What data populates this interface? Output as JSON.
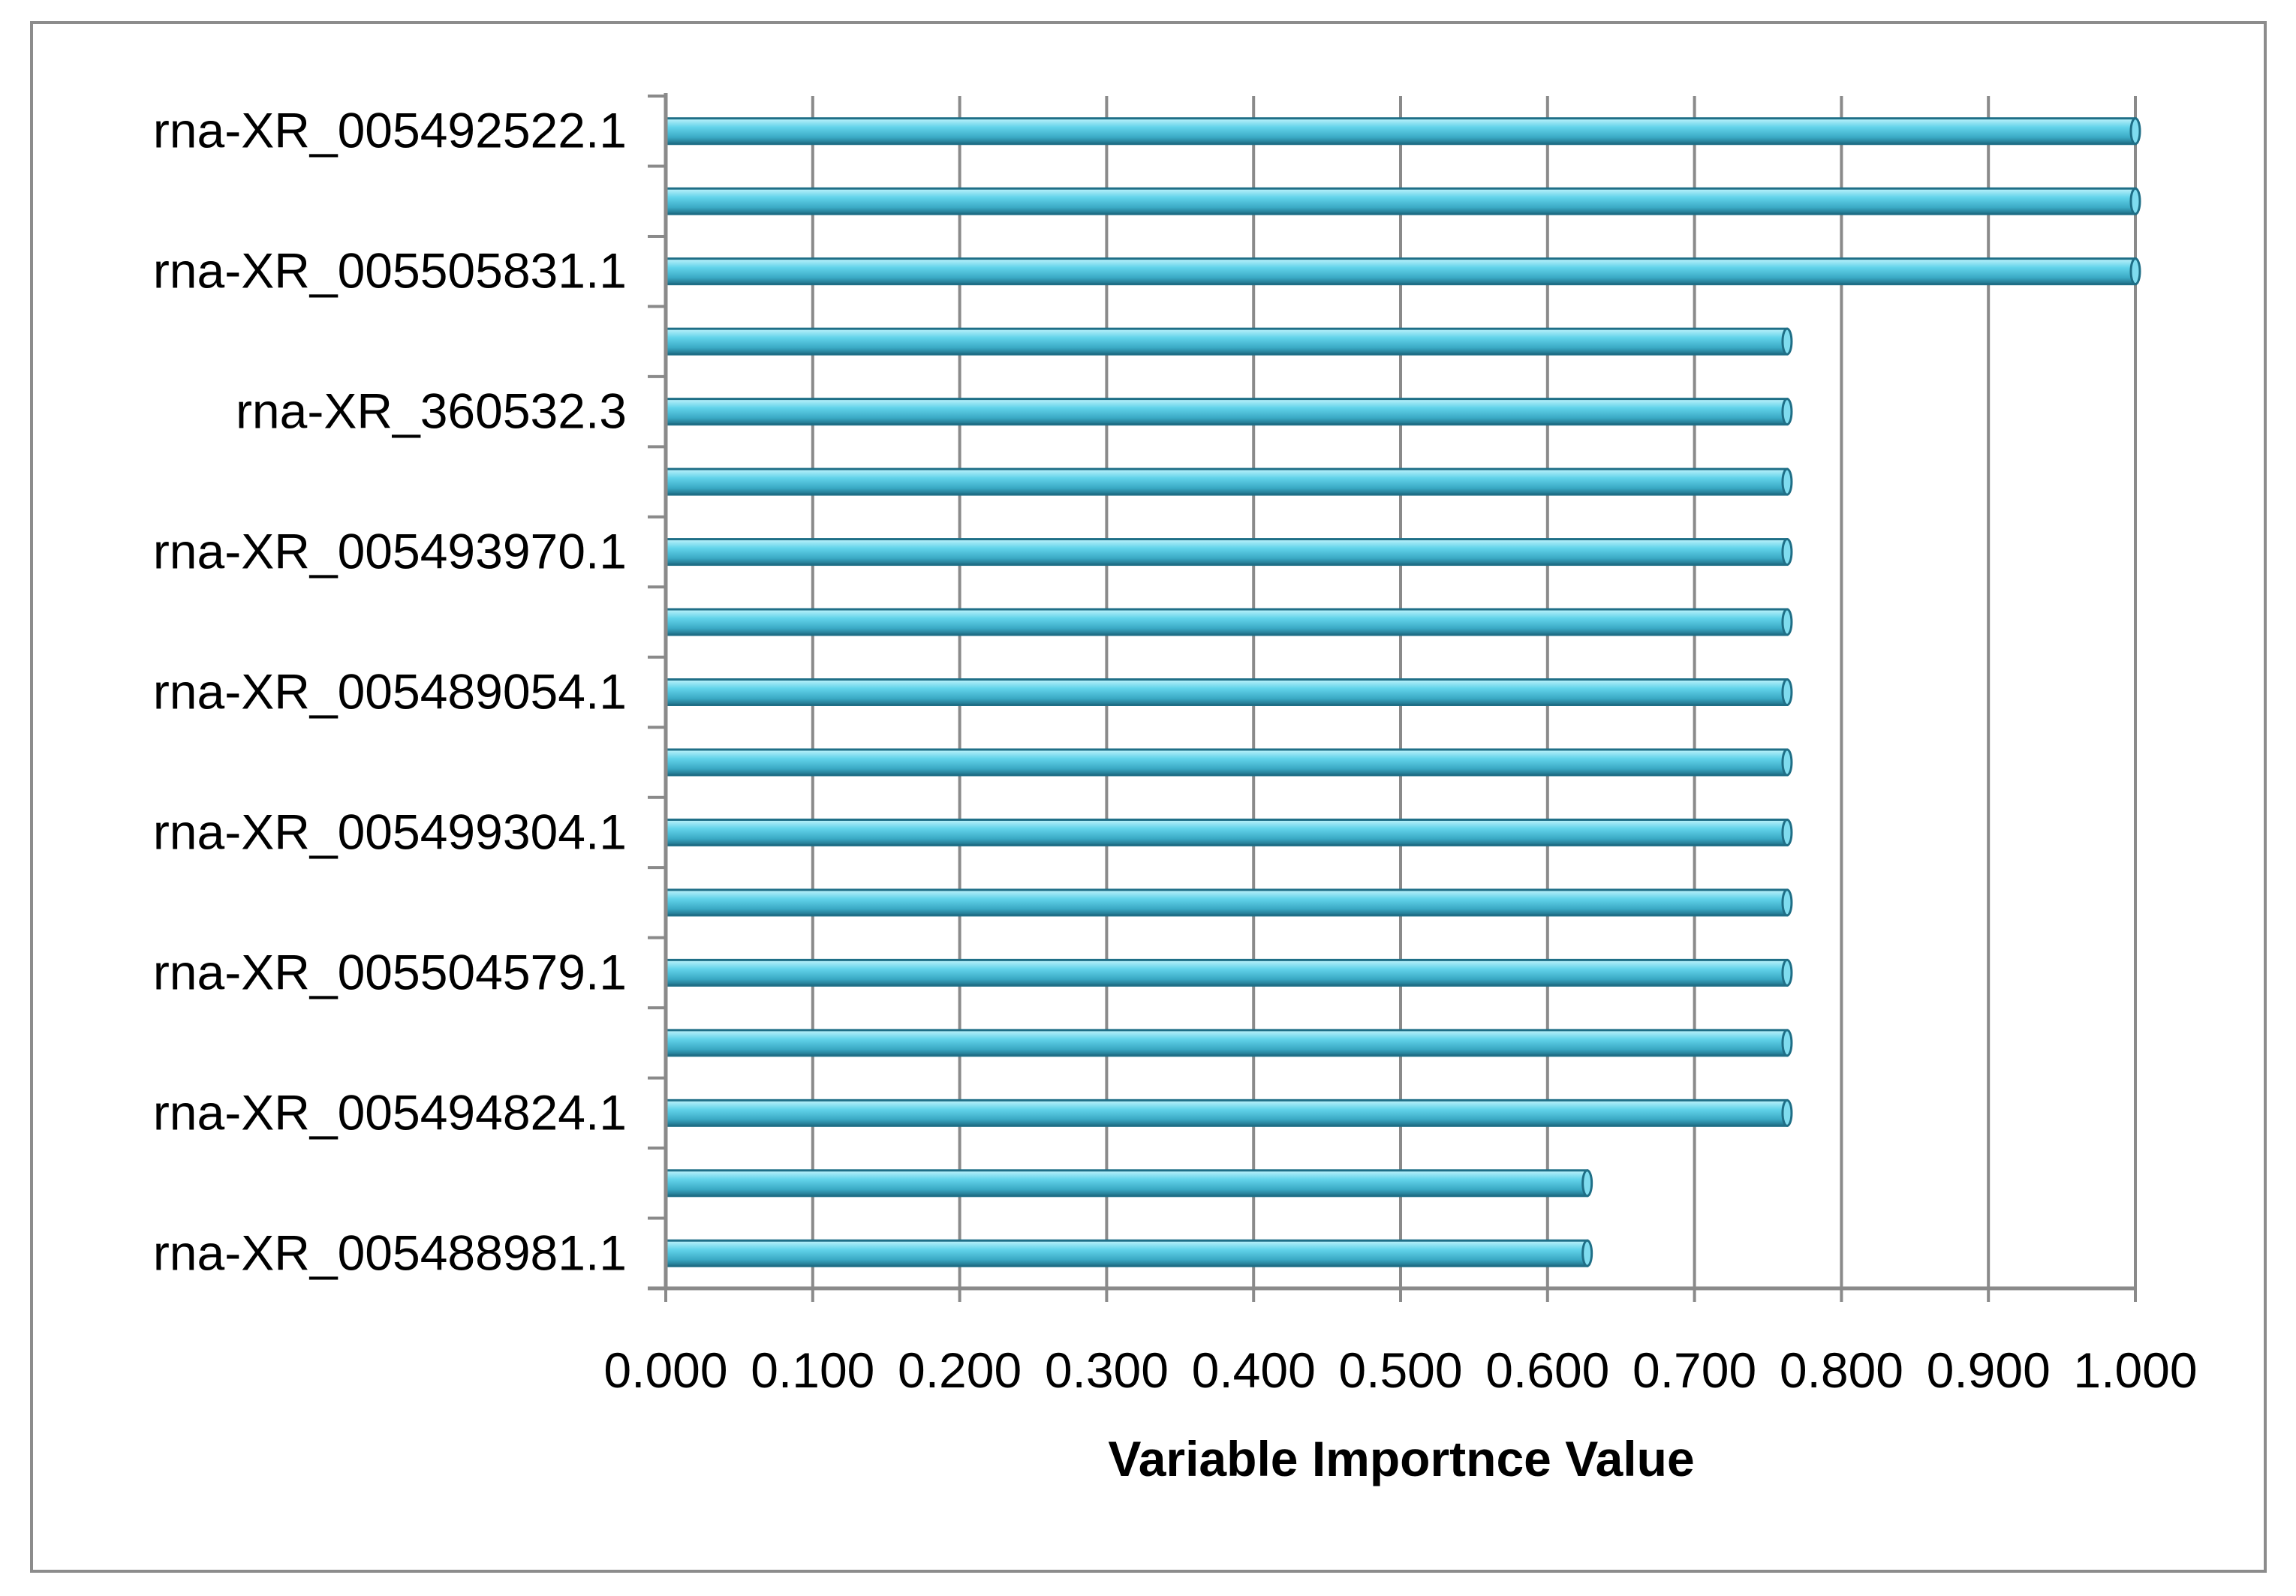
{
  "chart_data": {
    "type": "bar",
    "orientation": "horizontal",
    "title": "",
    "xlabel": "Variable Importnce Value",
    "ylabel": "",
    "xlim": [
      0,
      1
    ],
    "grid": "vertical",
    "legend": "none",
    "bar_color": "#4cc7e0",
    "bar_edge_color": "#1f6f87",
    "x_tick_labels": [
      "0.000",
      "0.100",
      "0.200",
      "0.300",
      "0.400",
      "0.500",
      "0.600",
      "0.700",
      "0.800",
      "0.900",
      "1.000"
    ],
    "y_tick_labels": [
      "rna-XR_005492522.1",
      "rna-XR_005505831.1",
      "rna-XR_360532.3",
      "rna-XR_005493970.1",
      "rna-XR_005489054.1",
      "rna-XR_005499304.1",
      "rna-XR_005504579.1",
      "rna-XR_005494824.1",
      "rna-XR_005488981.1"
    ],
    "values": [
      1.0,
      1.0,
      1.0,
      0.763,
      0.763,
      0.763,
      0.763,
      0.763,
      0.763,
      0.763,
      0.763,
      0.763,
      0.763,
      0.763,
      0.763,
      0.627,
      0.627
    ]
  }
}
